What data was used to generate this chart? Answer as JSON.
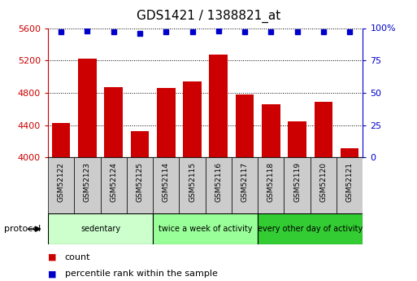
{
  "title": "GDS1421 / 1388821_at",
  "samples": [
    "GSM52122",
    "GSM52123",
    "GSM52124",
    "GSM52125",
    "GSM52114",
    "GSM52115",
    "GSM52116",
    "GSM52117",
    "GSM52118",
    "GSM52119",
    "GSM52120",
    "GSM52121"
  ],
  "counts": [
    4430,
    5220,
    4870,
    4320,
    4860,
    4940,
    5270,
    4780,
    4660,
    4450,
    4690,
    4110
  ],
  "percentile_ranks": [
    97,
    98,
    97,
    96,
    97,
    97,
    98,
    97,
    97,
    97,
    97,
    97
  ],
  "ylim": [
    4000,
    5600
  ],
  "yticks": [
    4000,
    4400,
    4800,
    5200,
    5600
  ],
  "right_yticks": [
    0,
    25,
    50,
    75,
    100
  ],
  "bar_color": "#cc0000",
  "dot_color": "#0000cc",
  "bar_width": 0.7,
  "groups": [
    {
      "label": "sedentary",
      "start": 0,
      "end": 3,
      "color": "#ccffcc"
    },
    {
      "label": "twice a week of activity",
      "start": 4,
      "end": 7,
      "color": "#99ff99"
    },
    {
      "label": "every other day of activity",
      "start": 8,
      "end": 11,
      "color": "#33cc33"
    }
  ],
  "protocol_label": "protocol",
  "legend_count_label": "count",
  "legend_percentile_label": "percentile rank within the sample",
  "left_axis_color": "#cc0000",
  "right_axis_color": "#0000cc",
  "sample_box_color": "#cccccc",
  "title_color": "#000000",
  "title_fontsize": 11
}
